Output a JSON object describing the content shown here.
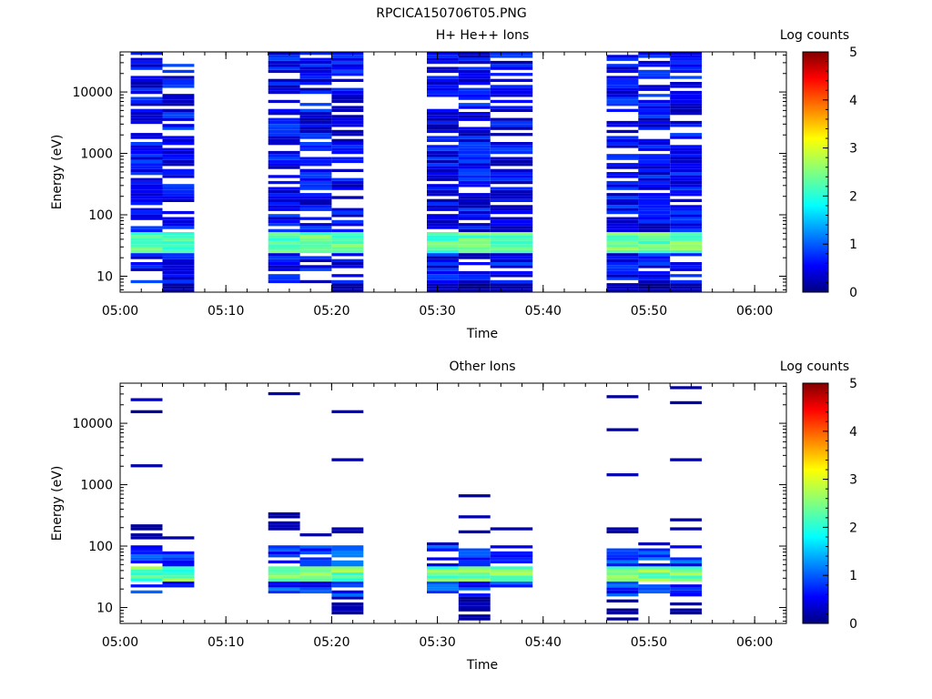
{
  "figure": {
    "title": "RPCICA150706T05.PNG"
  },
  "chart_data": [
    {
      "type": "heatmap",
      "title": "H+ He++ Ions",
      "xlabel": "Time",
      "ylabel": "Energy (eV)",
      "yscale": "log",
      "ylim": [
        5.5,
        45000
      ],
      "xlim": [
        "05:00",
        "06:03"
      ],
      "xticks": [
        "05:00",
        "05:10",
        "05:20",
        "05:30",
        "05:40",
        "05:50",
        "06:00"
      ],
      "yticks": [
        10,
        100,
        1000,
        10000
      ],
      "ytick_labels": [
        "10",
        "100",
        "1000",
        "10000"
      ],
      "colorbar": {
        "label": "Log counts",
        "min": 0,
        "max": 5,
        "ticks": [
          "0",
          "1",
          "2",
          "3",
          "4",
          "5"
        ]
      },
      "scans": [
        {
          "start": "05:01",
          "end": "05:04"
        },
        {
          "start": "05:04",
          "end": "05:07"
        },
        {
          "start": "05:14",
          "end": "05:17"
        },
        {
          "start": "05:17",
          "end": "05:20"
        },
        {
          "start": "05:20",
          "end": "05:23"
        },
        {
          "start": "05:29",
          "end": "05:32"
        },
        {
          "start": "05:32",
          "end": "05:35"
        },
        {
          "start": "05:35",
          "end": "05:39"
        },
        {
          "start": "05:46",
          "end": "05:49"
        },
        {
          "start": "05:49",
          "end": "05:52"
        },
        {
          "start": "05:52",
          "end": "05:55"
        }
      ],
      "peak_band_ev": [
        25,
        50
      ],
      "peak_log_counts": 2.7
    },
    {
      "type": "heatmap",
      "title": "Other Ions",
      "xlabel": "Time",
      "ylabel": "Energy (eV)",
      "yscale": "log",
      "ylim": [
        5.5,
        45000
      ],
      "xlim": [
        "05:00",
        "06:03"
      ],
      "xticks": [
        "05:00",
        "05:10",
        "05:20",
        "05:30",
        "05:40",
        "05:50",
        "06:00"
      ],
      "yticks": [
        10,
        100,
        1000,
        10000
      ],
      "ytick_labels": [
        "10",
        "100",
        "1000",
        "10000"
      ],
      "colorbar": {
        "label": "Log counts",
        "min": 0,
        "max": 5,
        "ticks": [
          "0",
          "1",
          "2",
          "3",
          "4",
          "5"
        ]
      },
      "scans": [
        {
          "start": "05:01",
          "end": "05:04"
        },
        {
          "start": "05:04",
          "end": "05:07"
        },
        {
          "start": "05:14",
          "end": "05:17"
        },
        {
          "start": "05:17",
          "end": "05:20"
        },
        {
          "start": "05:20",
          "end": "05:23"
        },
        {
          "start": "05:29",
          "end": "05:32"
        },
        {
          "start": "05:32",
          "end": "05:35"
        },
        {
          "start": "05:35",
          "end": "05:39"
        },
        {
          "start": "05:46",
          "end": "05:49"
        },
        {
          "start": "05:49",
          "end": "05:52"
        },
        {
          "start": "05:52",
          "end": "05:55"
        }
      ],
      "sparse_lines_ev": [
        [
          24000,
          15000,
          2000,
          220,
          195,
          160,
          140
        ],
        [
          140
        ],
        [
          29000,
          340,
          300,
          250,
          215,
          190
        ],
        [
          160
        ],
        [
          15000,
          2600,
          185,
          165
        ],
        [
          110,
          95
        ],
        [
          650,
          310,
          165
        ],
        [
          190
        ],
        [
          26000,
          8000,
          1400,
          190,
          165
        ],
        [
          110
        ],
        [
          36000,
          21000,
          2600,
          265,
          185
        ]
      ],
      "peak_band_ev": [
        28,
        48
      ],
      "peak_log_counts": 2.8
    }
  ]
}
